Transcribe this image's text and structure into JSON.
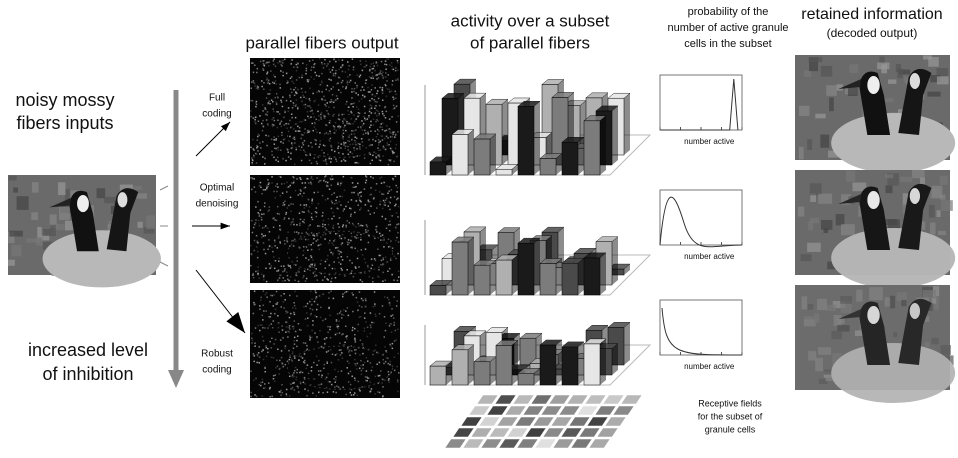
{
  "input": {
    "title_lines": [
      "noisy mossy",
      "fibers inputs"
    ],
    "inhibition_lines": [
      "increased level",
      "of inhibition"
    ]
  },
  "arrows": [
    {
      "label_lines": [
        "Full",
        "coding"
      ]
    },
    {
      "label_lines": [
        "Optimal",
        "denoising"
      ]
    },
    {
      "label_lines": [
        "Robust",
        "coding"
      ]
    }
  ],
  "columns": {
    "parallel_fibers": "parallel fibers output",
    "activity_lines": [
      "activity over a subset",
      "of parallel fibers"
    ],
    "probability_lines": [
      "probability of the",
      "number of active granule",
      "cells in the subset"
    ],
    "retained": "retained information",
    "retained_sub": "(decoded output)"
  },
  "plots": [
    {
      "xlabel": "number active"
    },
    {
      "xlabel": "number active"
    },
    {
      "xlabel": "number active"
    }
  ],
  "receptive_lines": [
    "Receptive fields",
    "for the subset of",
    "granule cells"
  ]
}
